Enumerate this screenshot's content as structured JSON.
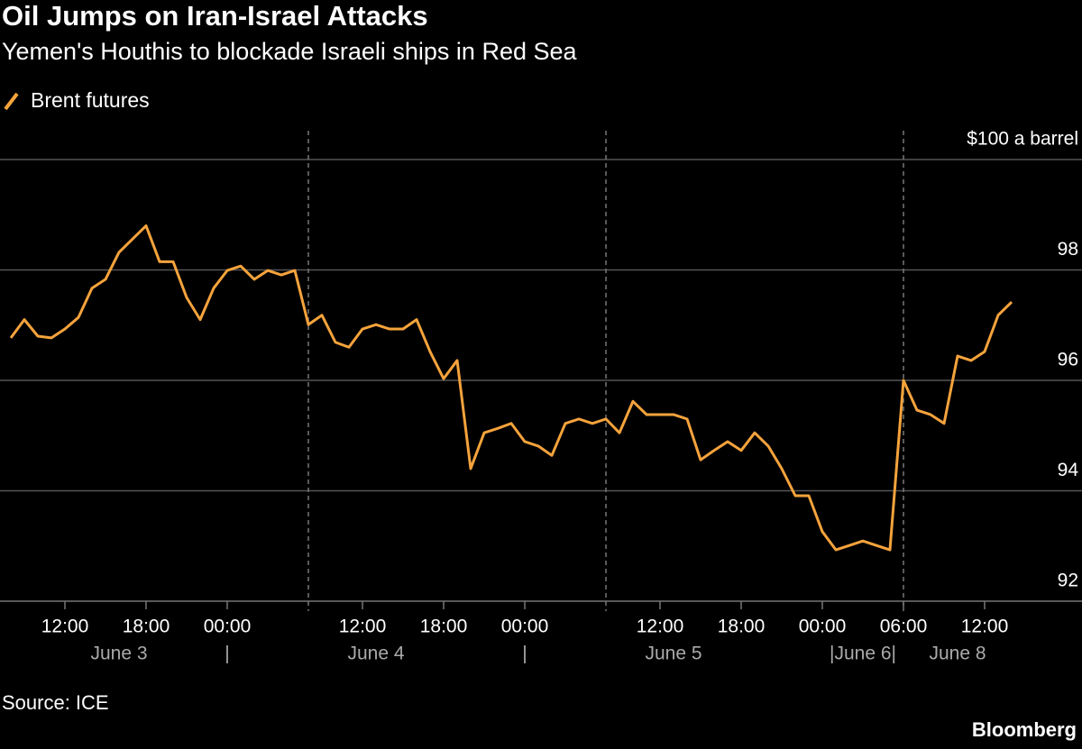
{
  "chart_data": {
    "type": "line",
    "title": "Oil Jumps on Iran-Israel Attacks",
    "subtitle": "Yemen's Houthis to blockade Israeli ships in Red Sea",
    "source": "Source: ICE",
    "credit": "Bloomberg",
    "categories": [
      "June 3 08:00",
      "June 3 09:00",
      "June 3 10:00",
      "June 3 11:00",
      "June 3 12:00",
      "June 3 13:00",
      "June 3 14:00",
      "June 3 15:00",
      "June 3 16:00",
      "June 3 17:00",
      "June 3 18:00",
      "June 3 19:00",
      "June 3 20:00",
      "June 3 21:00",
      "June 3 22:00",
      "June 3 23:00",
      "June 4 00:00",
      "June 4 01:00",
      "June 4 02:00",
      "June 4 03:00",
      "June 4 04:00",
      "June 4 05:00",
      "June 4 06:00",
      "June 4 09:00",
      "June 4 10:00",
      "June 4 11:00",
      "June 4 12:00",
      "June 4 13:00",
      "June 4 14:00",
      "June 4 15:00",
      "June 4 16:00",
      "June 4 17:00",
      "June 4 18:00",
      "June 4 19:00",
      "June 4 20:00",
      "June 4 21:00",
      "June 4 22:00",
      "June 4 23:00",
      "June 5 00:00",
      "June 5 01:00",
      "June 5 02:00",
      "June 5 03:00",
      "June 5 04:00",
      "June 5 05:00",
      "June 5 06:00",
      "June 5 09:00",
      "June 5 10:00",
      "June 5 11:00",
      "June 5 12:00",
      "June 5 13:00",
      "June 5 14:00",
      "June 5 15:00",
      "June 5 16:00",
      "June 5 17:00",
      "June 5 18:00",
      "June 5 19:00",
      "June 5 20:00",
      "June 5 21:00",
      "June 5 22:00",
      "June 5 23:00",
      "June 6 00:00",
      "June 6 01:00",
      "June 6 02:00",
      "June 6 03:00",
      "June 6 04:00",
      "June 6 05:00",
      "June 8 06:00",
      "June 8 07:00",
      "June 8 08:00",
      "June 8 09:00",
      "June 8 10:00",
      "June 8 11:00",
      "June 8 12:00",
      "June 8 13:00",
      "June 8 14:00"
    ],
    "series": [
      {
        "name": "Brent futures",
        "color": "#f5a33c",
        "values": [
          96.77,
          97.1,
          96.8,
          96.77,
          96.93,
          97.14,
          97.67,
          97.83,
          98.32,
          98.56,
          98.8,
          98.15,
          98.15,
          97.5,
          97.1,
          97.67,
          97.99,
          98.07,
          97.83,
          97.99,
          97.91,
          97.99,
          97.01,
          97.18,
          96.69,
          96.6,
          96.93,
          97.01,
          96.93,
          96.93,
          97.1,
          96.52,
          96.03,
          96.36,
          94.4,
          95.05,
          95.13,
          95.22,
          94.89,
          94.81,
          94.64,
          95.22,
          95.3,
          95.22,
          95.3,
          95.05,
          95.62,
          95.38,
          95.38,
          95.38,
          95.3,
          94.56,
          94.73,
          94.89,
          94.73,
          95.05,
          94.81,
          94.4,
          93.91,
          93.91,
          93.26,
          92.93,
          93.01,
          93.09,
          93.01,
          92.93,
          96.0,
          95.46,
          95.38,
          95.22,
          96.44,
          96.36,
          96.52,
          97.18,
          97.42
        ]
      }
    ],
    "ylim": [
      92,
      100
    ],
    "yticks": [
      92,
      94,
      96,
      98,
      {
        "value": 100,
        "label": "$100 a barrel"
      }
    ],
    "xticks": [
      {
        "value": "June 3 12:00",
        "label": "12:00"
      },
      {
        "value": "June 3 18:00",
        "label": "18:00"
      },
      {
        "value": "June 4 00:00",
        "label": "00:00"
      },
      {
        "value": "June 4 12:00",
        "label": "12:00"
      },
      {
        "value": "June 4 18:00",
        "label": "18:00"
      },
      {
        "value": "June 5 00:00",
        "label": "00:00"
      },
      {
        "value": "June 5 12:00",
        "label": "12:00"
      },
      {
        "value": "June 5 18:00",
        "label": "18:00"
      },
      {
        "value": "June 6 00:00",
        "label": "00:00"
      },
      {
        "value": "June 8 06:00",
        "label": "06:00"
      },
      {
        "value": "June 8 12:00",
        "label": "12:00"
      }
    ],
    "date_labels": [
      {
        "value": "June 3 16:00",
        "label": "June 3"
      },
      {
        "value": "June 4 00:00",
        "label": "|"
      },
      {
        "value": "June 4 13:00",
        "label": "June 4"
      },
      {
        "value": "June 5 00:00",
        "label": "|"
      },
      {
        "value": "June 5 13:00",
        "label": "June 5"
      },
      {
        "value": "June 6 03:00",
        "label": "|June 6|"
      },
      {
        "value": "June 8 10:00",
        "label": "June 8"
      }
    ],
    "separators": [
      "June 4 06:00",
      "June 5 06:00",
      "June 8 06:00"
    ],
    "grid": true
  }
}
